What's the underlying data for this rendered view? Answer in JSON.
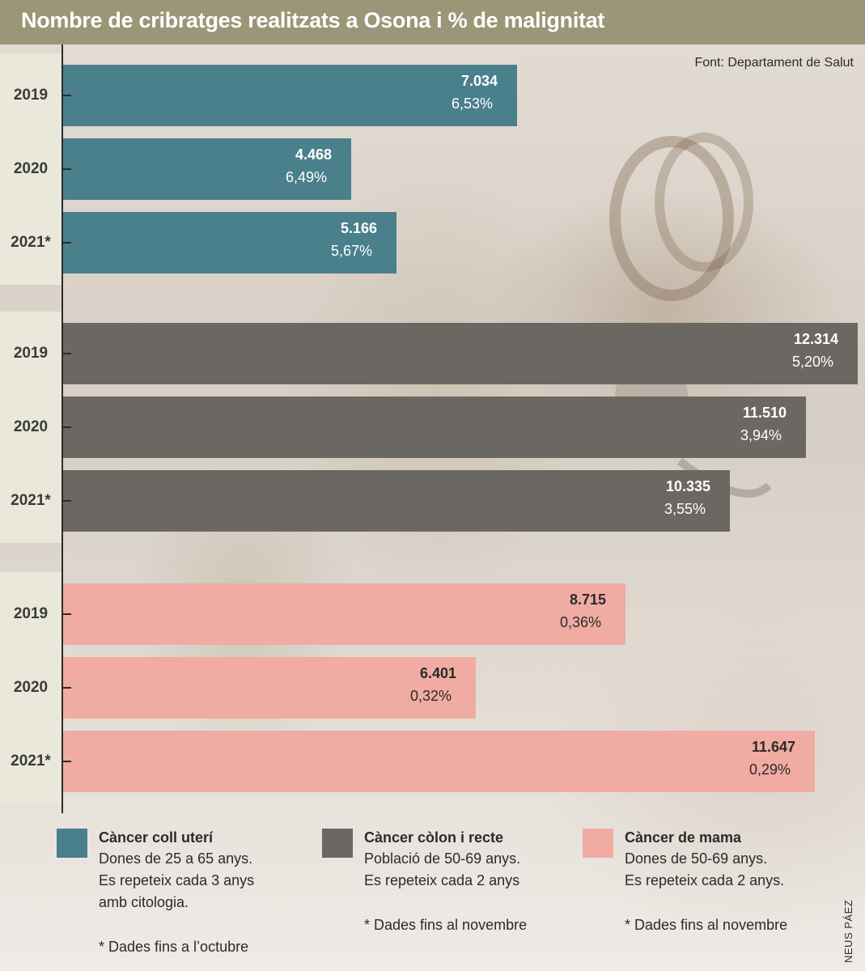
{
  "title": "Nombre de cribratges realitzats a Osona i % de malignitat",
  "source": "Font: Departament de Salut",
  "credit": "NEUS PÁEZ",
  "colors": {
    "header": "#9a9677",
    "coll_uteri": "#4a7f8c",
    "colon_recte": "#6b6863",
    "mama": "#f0aba2"
  },
  "chart_data": {
    "type": "bar",
    "orientation": "horizontal",
    "title": "Nombre de cribratges realitzats a Osona i % de malignitat",
    "xlim": [
      0,
      12314
    ],
    "groups": [
      {
        "name": "Càncer coll uterí",
        "color": "#4a7f8c",
        "label_color": "#ffffff",
        "bars": [
          {
            "year": "2019",
            "value": 7034,
            "value_label": "7.034",
            "pct_label": "6,53%"
          },
          {
            "year": "2020",
            "value": 4468,
            "value_label": "4.468",
            "pct_label": "6,49%"
          },
          {
            "year": "2021*",
            "value": 5166,
            "value_label": "5.166",
            "pct_label": "5,67%"
          }
        ]
      },
      {
        "name": "Càncer còlon i recte",
        "color": "#6b6863",
        "label_color": "#ffffff",
        "bars": [
          {
            "year": "2019",
            "value": 12314,
            "value_label": "12.314",
            "pct_label": "5,20%"
          },
          {
            "year": "2020",
            "value": 11510,
            "value_label": "11.510",
            "pct_label": "3,94%"
          },
          {
            "year": "2021*",
            "value": 10335,
            "value_label": "10.335",
            "pct_label": "3,55%"
          }
        ]
      },
      {
        "name": "Càncer de mama",
        "color": "#f0aba2",
        "label_color": "#2b2b2b",
        "bars": [
          {
            "year": "2019",
            "value": 8715,
            "value_label": "8.715",
            "pct_label": "0,36%"
          },
          {
            "year": "2020",
            "value": 6401,
            "value_label": "6.401",
            "pct_label": "0,32%"
          },
          {
            "year": "2021*",
            "value": 11647,
            "value_label": "11.647",
            "pct_label": "0,29%"
          }
        ]
      }
    ]
  },
  "legend": [
    {
      "title": "Càncer coll uterí",
      "lines": [
        "Dones de 25 a 65 anys.",
        "Es repeteix cada 3 anys",
        "amb citologia."
      ],
      "note": "* Dades fins a l’octubre"
    },
    {
      "title": "Càncer còlon i recte",
      "lines": [
        "Població de 50-69 anys.",
        "Es repeteix  cada 2 anys"
      ],
      "note": "* Dades fins al novembre"
    },
    {
      "title": "Càncer de mama",
      "lines": [
        "Dones de 50-69 anys.",
        "Es repeteix cada 2 anys."
      ],
      "note": "* Dades fins al novembre"
    }
  ]
}
